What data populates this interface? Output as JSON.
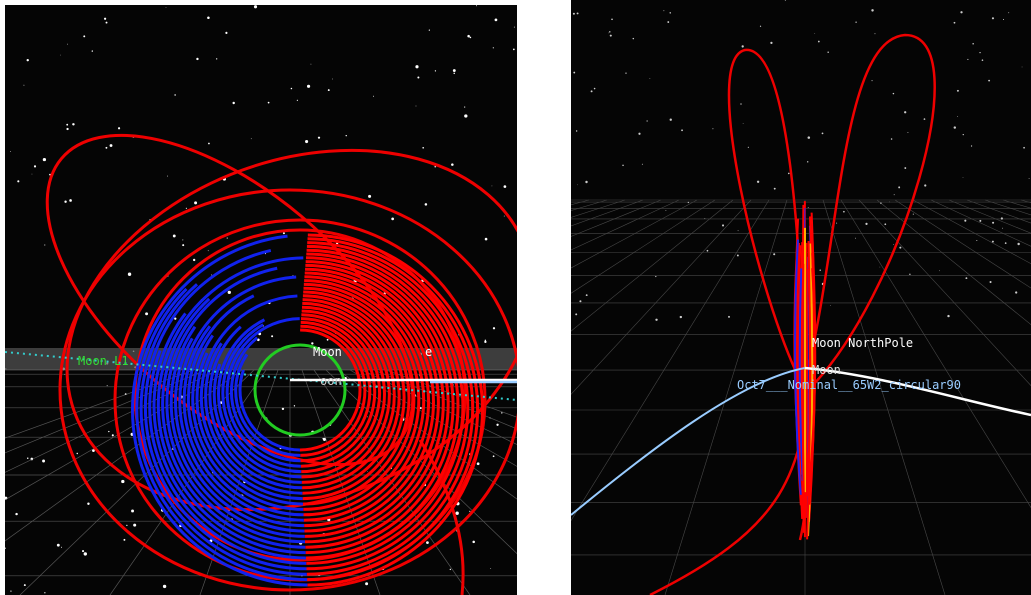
{
  "left_view": {
    "labels": [
      "Moon L1",
      "Moon",
      "oon",
      "e"
    ]
  },
  "right_view": {
    "labels": [
      "Moon NorthPole",
      "Moon",
      "Oct7___Nominal__65W2_circular90"
    ]
  }
}
